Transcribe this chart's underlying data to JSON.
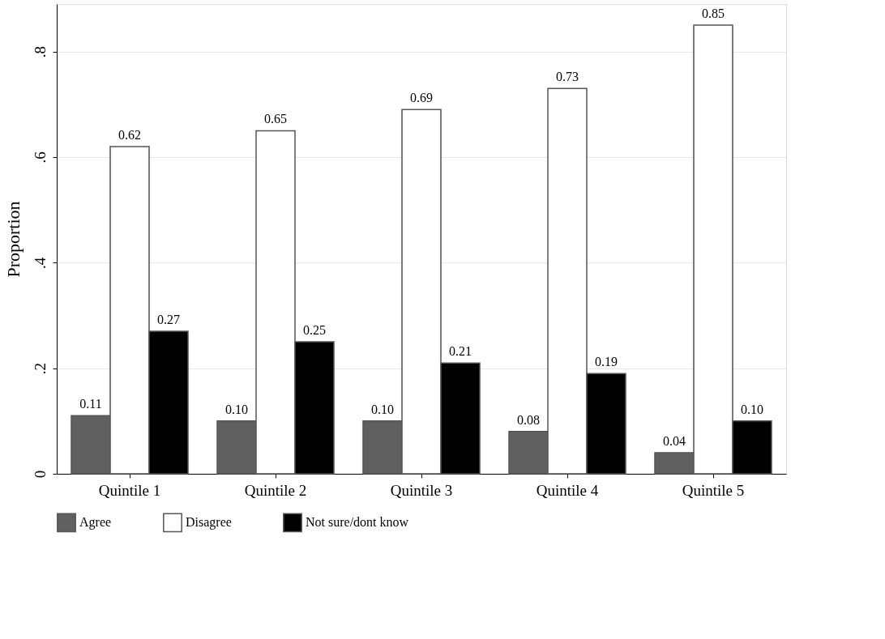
{
  "chart_data": {
    "type": "bar",
    "ylabel": "Proportion",
    "categories": [
      "Quintile 1",
      "Quintile 2",
      "Quintile 3",
      "Quintile 4",
      "Quintile 5"
    ],
    "series": [
      {
        "name": "Agree",
        "color": "#606060",
        "values": [
          0.11,
          0.1,
          0.1,
          0.08,
          0.04
        ],
        "value_labels": [
          "0.11",
          "0.10",
          "0.10",
          "0.08",
          "0.04"
        ]
      },
      {
        "name": "Disagree",
        "color": "#ffffff",
        "values": [
          0.62,
          0.65,
          0.69,
          0.73,
          0.85
        ],
        "value_labels": [
          "0.62",
          "0.65",
          "0.69",
          "0.73",
          "0.85"
        ]
      },
      {
        "name": "Not sure/dont know",
        "color": "#000000",
        "values": [
          0.27,
          0.25,
          0.21,
          0.19,
          0.1
        ],
        "value_labels": [
          "0.27",
          "0.25",
          "0.21",
          "0.19",
          "0.10"
        ]
      }
    ],
    "ylim": [
      0,
      0.89
    ],
    "yticks": [
      0,
      {
        "value": 0.2,
        "label": ".2"
      },
      {
        "value": 0.4,
        "label": ".4"
      },
      {
        "value": 0.6,
        "label": ".6"
      },
      {
        "value": 0.8,
        "label": ".8"
      }
    ],
    "grid": "y",
    "legend": "bottom"
  }
}
